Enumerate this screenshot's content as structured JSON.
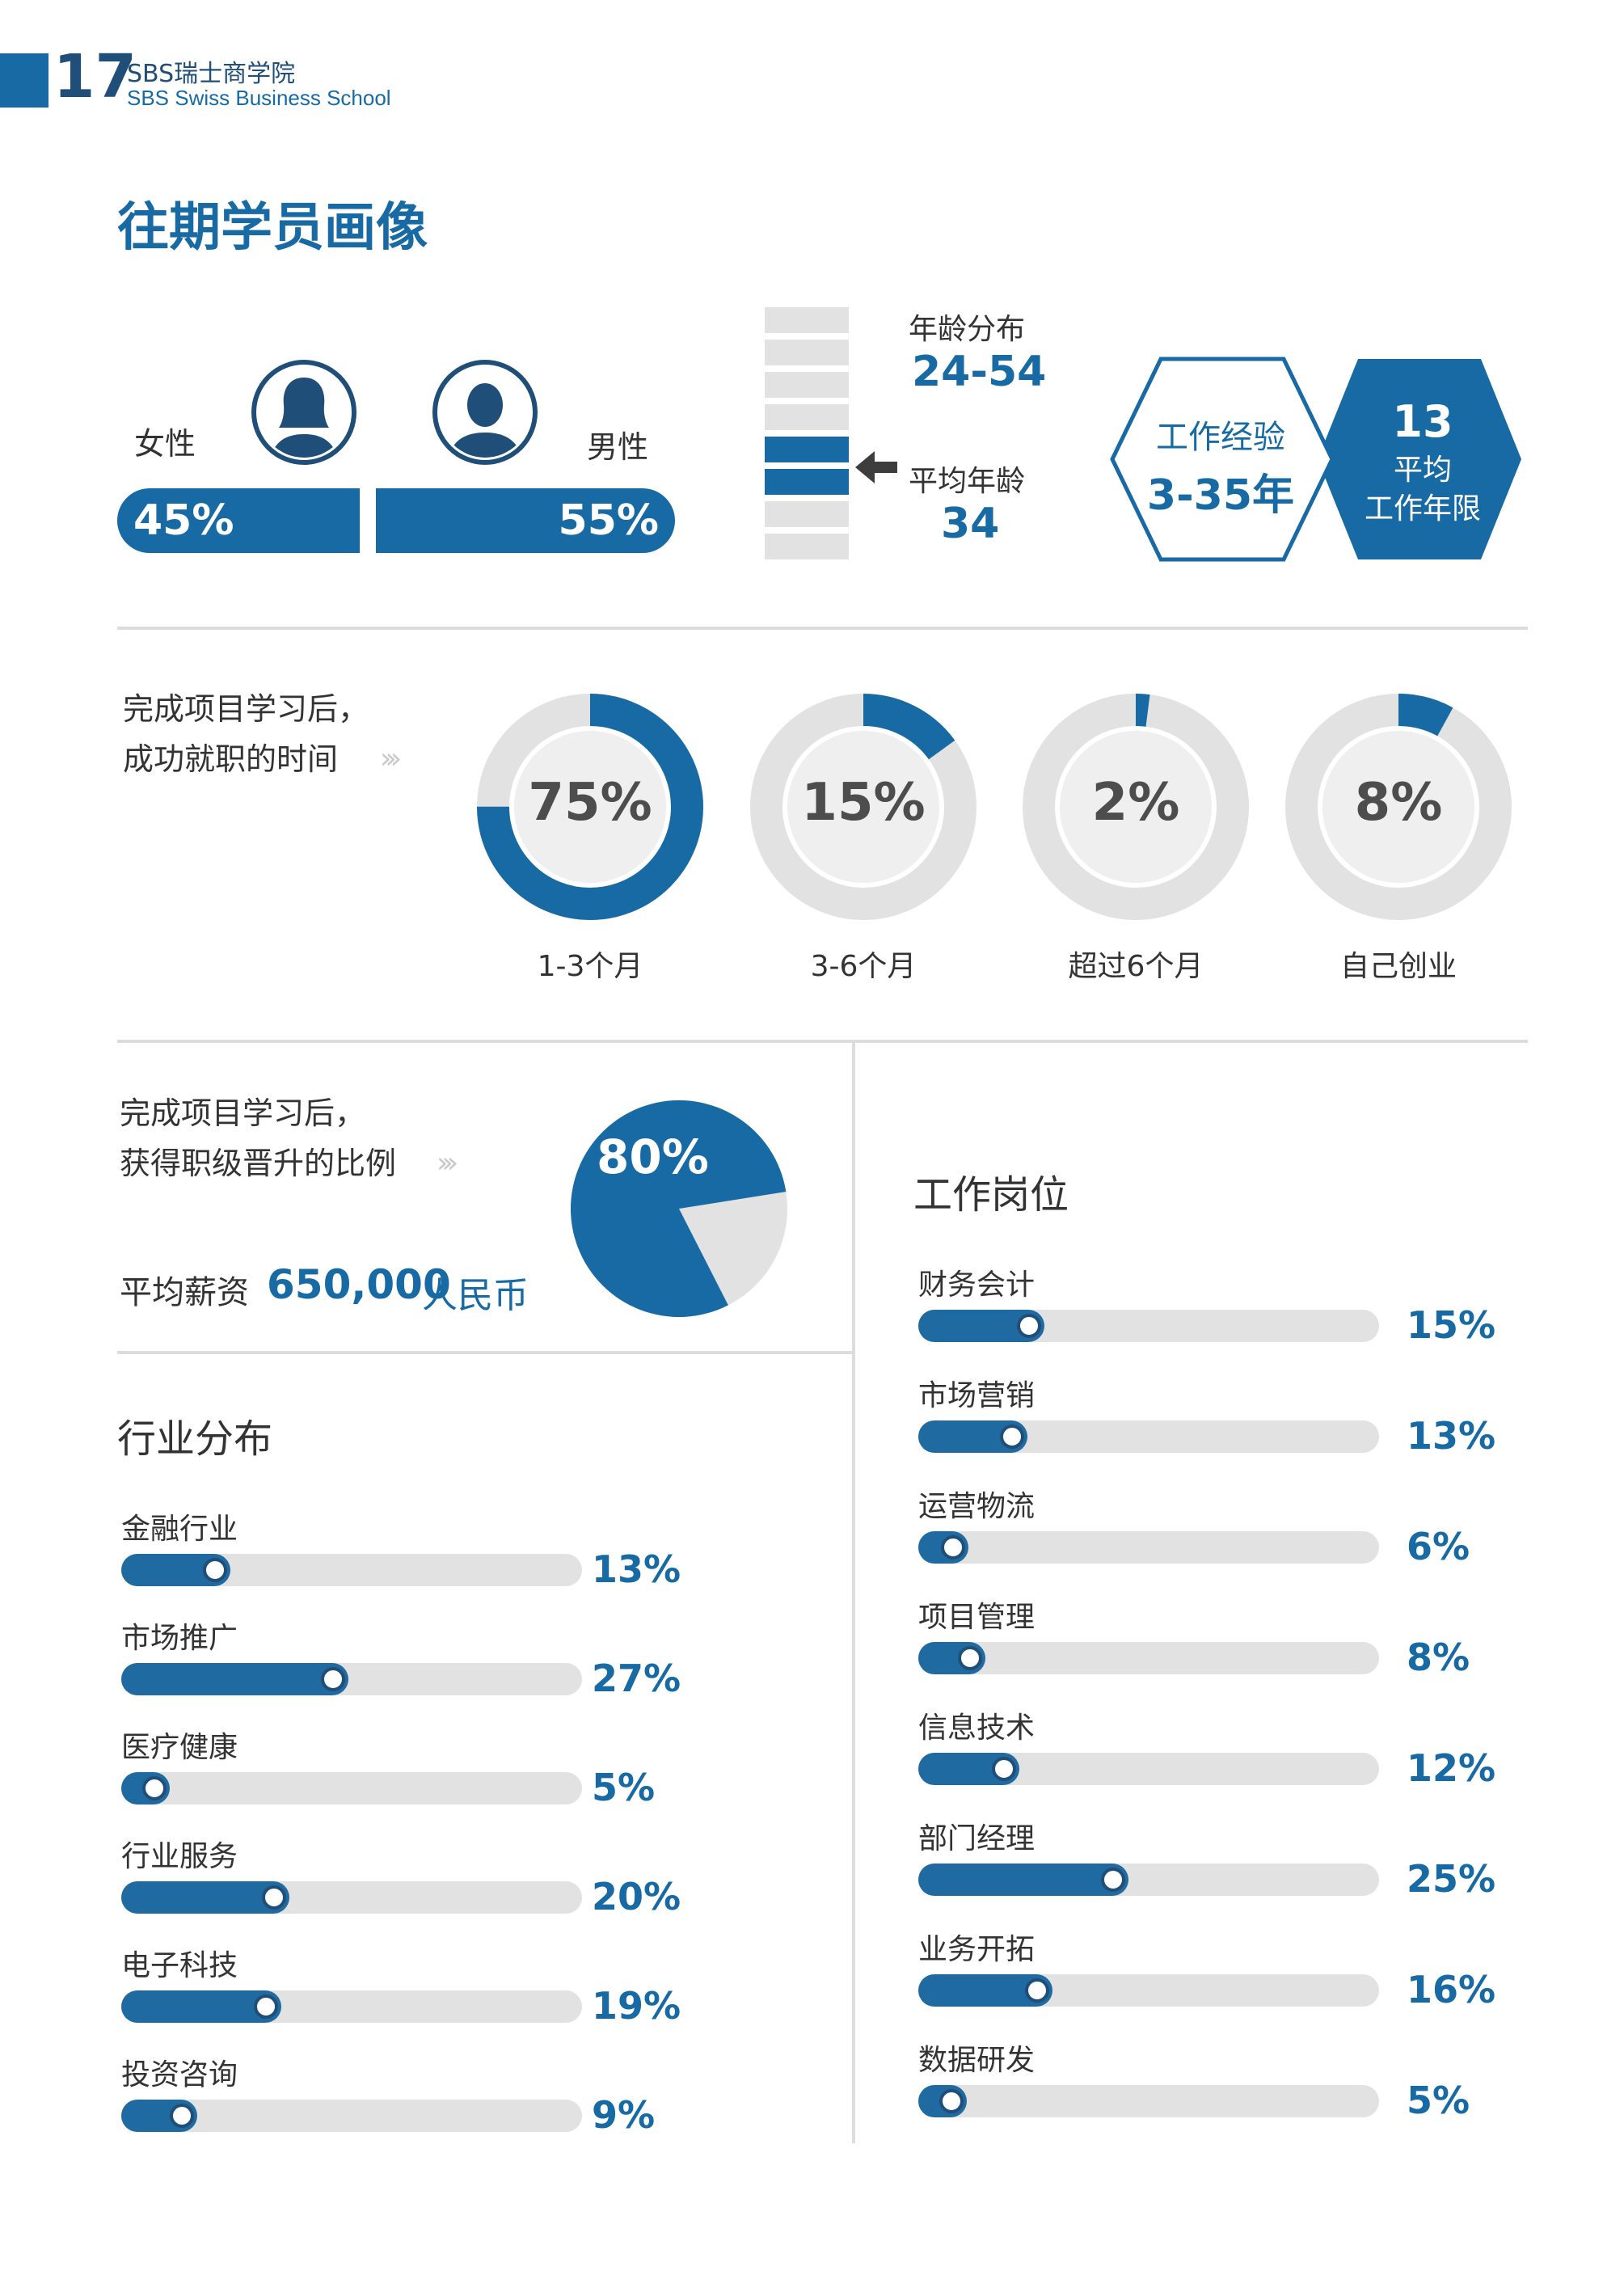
{
  "header": {
    "page_number": "17",
    "school_cn": "SBS瑞士商学院",
    "school_en": "SBS Swiss Business School"
  },
  "title": "往期学员画像",
  "gender": {
    "female_label": "女性",
    "male_label": "男性",
    "female_pct": "45%",
    "male_pct": "55%",
    "female_value": 45,
    "male_value": 55
  },
  "age": {
    "dist_label": "年龄分布",
    "range": "24-54",
    "avg_label": "平均年龄",
    "avg": "34"
  },
  "experience": {
    "label": "工作经验",
    "range": "3-35年",
    "avg_years": "13",
    "avg_label_1": "平均",
    "avg_label_2": "工作年限"
  },
  "employment": {
    "text_line1": "完成项目学习后，",
    "text_line2": "成功就职的时间",
    "items": [
      {
        "value": 75,
        "label_pct": "75%",
        "label": "1-3个月"
      },
      {
        "value": 15,
        "label_pct": "15%",
        "label": "3-6个月"
      },
      {
        "value": 2,
        "label_pct": "2%",
        "label": "超过6个月"
      },
      {
        "value": 8,
        "label_pct": "8%",
        "label": "自己创业"
      }
    ]
  },
  "promotion": {
    "text_line1": "完成项目学习后，",
    "text_line2": "获得职级晋升的比例",
    "value": 80,
    "label_pct": "80%",
    "salary_label": "平均薪资",
    "salary_value": "650,000",
    "salary_unit": "人民币"
  },
  "industry": {
    "title": "行业分布",
    "items": [
      {
        "label": "金融行业",
        "value": 13,
        "pct": "13%"
      },
      {
        "label": "市场推广",
        "value": 27,
        "pct": "27%"
      },
      {
        "label": "医疗健康",
        "value": 5,
        "pct": "5%"
      },
      {
        "label": "行业服务",
        "value": 20,
        "pct": "20%"
      },
      {
        "label": "电子科技",
        "value": 19,
        "pct": "19%"
      },
      {
        "label": "投资咨询",
        "value": 9,
        "pct": "9%"
      }
    ]
  },
  "positions": {
    "title": "工作岗位",
    "items": [
      {
        "label": "财务会计",
        "value": 15,
        "pct": "15%"
      },
      {
        "label": "市场营销",
        "value": 13,
        "pct": "13%"
      },
      {
        "label": "运营物流",
        "value": 6,
        "pct": "6%"
      },
      {
        "label": "项目管理",
        "value": 8,
        "pct": "8%"
      },
      {
        "label": "信息技术",
        "value": 12,
        "pct": "12%"
      },
      {
        "label": "部门经理",
        "value": 25,
        "pct": "25%"
      },
      {
        "label": "业务开拓",
        "value": 16,
        "pct": "16%"
      },
      {
        "label": "数据研发",
        "value": 5,
        "pct": "5%"
      }
    ]
  },
  "colors": {
    "primary": "#176aa3",
    "dark": "#1f4e79",
    "grey": "#e2e2e2"
  }
}
